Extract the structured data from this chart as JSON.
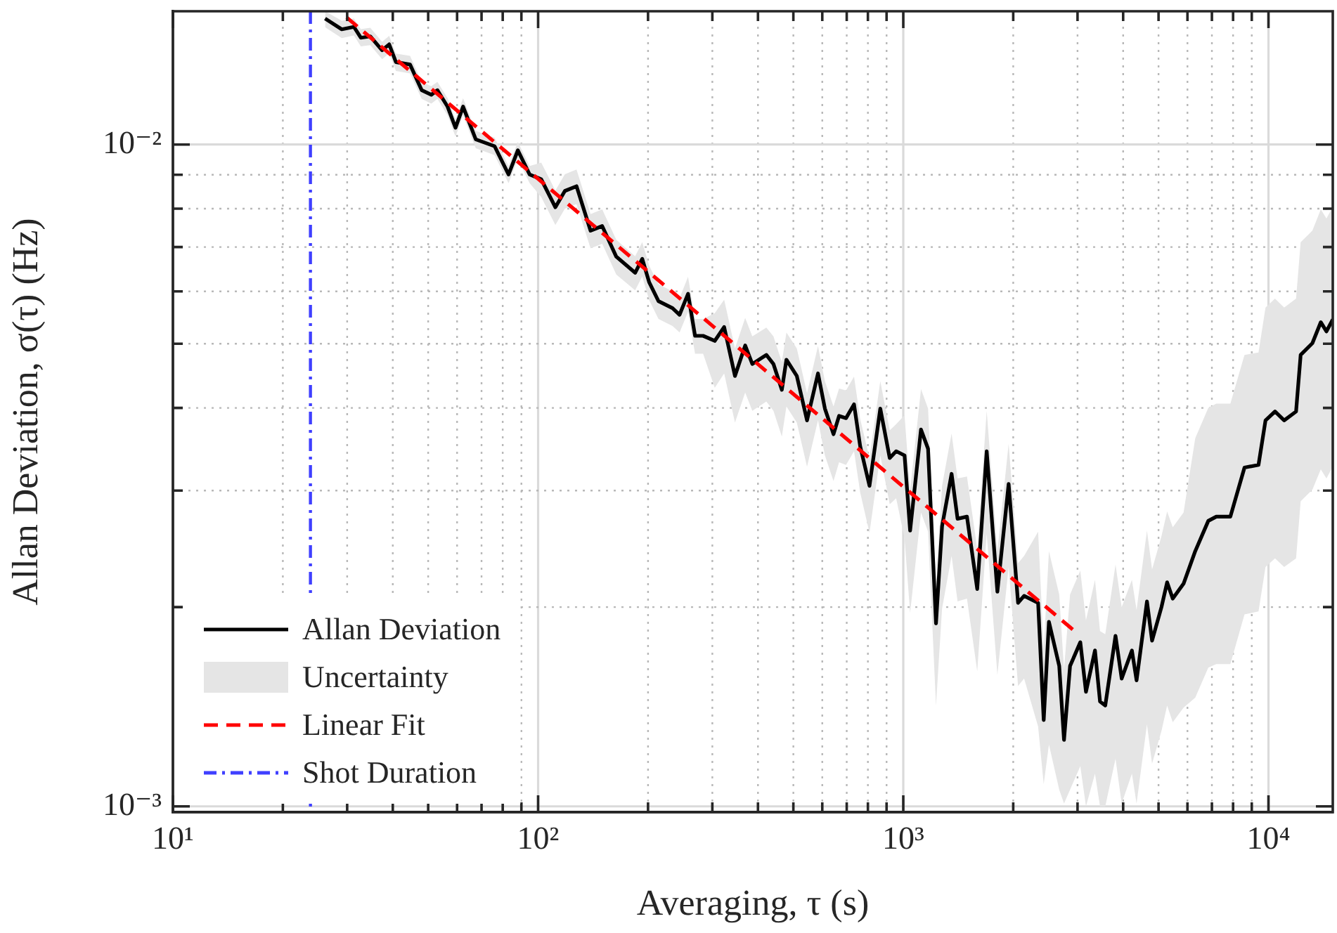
{
  "chart_data": {
    "type": "line",
    "xlabel": "Averaging, τ (s)",
    "ylabel": "Allan Deviation, σ(τ) (Hz)",
    "log": "xy",
    "grid": true,
    "legend": "bottom left",
    "marker": "none",
    "annotations": [
      "Uncertainty"
    ],
    "xlim": [
      10,
      15000
    ],
    "ylim": [
      0.00098,
      0.0159
    ],
    "xticks": [
      {
        "value": 10,
        "label": "10¹"
      },
      {
        "value": 20,
        "label": null
      },
      {
        "value": 30,
        "label": null
      },
      {
        "value": 40,
        "label": null
      },
      {
        "value": 50,
        "label": null
      },
      {
        "value": 60,
        "label": null
      },
      {
        "value": 70,
        "label": null
      },
      {
        "value": 80,
        "label": null
      },
      {
        "value": 90,
        "label": null
      },
      {
        "value": 100,
        "label": "10²"
      },
      {
        "value": 200,
        "label": null
      },
      {
        "value": 300,
        "label": null
      },
      {
        "value": 400,
        "label": null
      },
      {
        "value": 500,
        "label": null
      },
      {
        "value": 600,
        "label": null
      },
      {
        "value": 700,
        "label": null
      },
      {
        "value": 800,
        "label": null
      },
      {
        "value": 900,
        "label": null
      },
      {
        "value": 1000,
        "label": "10³"
      },
      {
        "value": 2000,
        "label": null
      },
      {
        "value": 3000,
        "label": null
      },
      {
        "value": 4000,
        "label": null
      },
      {
        "value": 5000,
        "label": null
      },
      {
        "value": 6000,
        "label": null
      },
      {
        "value": 7000,
        "label": null
      },
      {
        "value": 8000,
        "label": null
      },
      {
        "value": 9000,
        "label": null
      },
      {
        "value": 10000,
        "label": "10⁴"
      }
    ],
    "yticks": [
      {
        "value": 0.001,
        "label": "10⁻³"
      },
      {
        "value": 0.002,
        "label": null
      },
      {
        "value": 0.003,
        "label": null
      },
      {
        "value": 0.004,
        "label": null
      },
      {
        "value": 0.005,
        "label": null
      },
      {
        "value": 0.006,
        "label": null
      },
      {
        "value": 0.007,
        "label": null
      },
      {
        "value": 0.008,
        "label": null
      },
      {
        "value": 0.009,
        "label": null
      },
      {
        "value": 0.01,
        "label": "10⁻²"
      }
    ],
    "x": [
      26.1,
      29.0,
      31.3,
      32.7,
      34.7,
      37.4,
      39.1,
      40.8,
      44.6,
      48.0,
      51.0,
      53.0,
      56.5,
      59.4,
      62.3,
      67.5,
      76.0,
      83.0,
      88.0,
      94.8,
      102,
      111.5,
      118.4,
      127.4,
      139.2,
      149.8,
      163.7,
      184.4,
      192.8,
      201.5,
      213.6,
      233.4,
      244,
      257.4,
      269,
      283,
      304.6,
      323.2,
      346,
      369,
      386,
      421.7,
      441,
      465,
      478.6,
      511,
      545,
      584,
      610,
      644,
      667,
      697,
      733,
      762,
      808,
      865,
      918,
      956,
      1008,
      1044,
      1118,
      1169,
      1229,
      1277,
      1356,
      1408,
      1494,
      1594,
      1692,
      1810,
      1943,
      2062,
      2142,
      2340,
      2424,
      2505,
      2673,
      2755,
      2862,
      3053,
      3164,
      3349,
      3457,
      3573,
      3812,
      3963,
      4227,
      4353,
      4648,
      4800,
      5093,
      5278,
      5469,
      5854,
      6302,
      6843,
      7196,
      7864,
      8597,
      9391,
      9815,
      10420,
      11040,
      11900,
      12250,
      13190,
      13910,
      14410,
      15000
    ],
    "series": [
      {
        "name": "Allan Deviation",
        "color": "#000000",
        "line_style": "solid",
        "values": [
          0.0155,
          0.01493,
          0.01506,
          0.0145,
          0.01457,
          0.01388,
          0.01417,
          0.01332,
          0.01321,
          0.01208,
          0.01189,
          0.01208,
          0.01141,
          0.0106,
          0.01141,
          0.01018,
          0.00994,
          0.00901,
          0.0098,
          0.00901,
          0.00886,
          0.00804,
          0.00851,
          0.00865,
          0.00741,
          0.00753,
          0.00677,
          0.0064,
          0.00672,
          0.00619,
          0.0058,
          0.00566,
          0.00553,
          0.00595,
          0.00514,
          0.00514,
          0.00505,
          0.0053,
          0.00447,
          0.00497,
          0.00466,
          0.00481,
          0.00466,
          0.00426,
          0.00473,
          0.00447,
          0.00383,
          0.00451,
          0.00399,
          0.00365,
          0.00389,
          0.00386,
          0.00405,
          0.0035,
          0.00305,
          0.00399,
          0.00336,
          0.00344,
          0.00339,
          0.00261,
          0.00371,
          0.00347,
          0.00189,
          0.00265,
          0.00318,
          0.00272,
          0.00274,
          0.00213,
          0.00344,
          0.00211,
          0.00307,
          0.00203,
          0.00208,
          0.00203,
          0.00135,
          0.0019,
          0.00163,
          0.00126,
          0.00163,
          0.00177,
          0.00149,
          0.00172,
          0.00144,
          0.00142,
          0.00181,
          0.00156,
          0.00172,
          0.00155,
          0.00204,
          0.00178,
          0.002,
          0.00218,
          0.00206,
          0.00217,
          0.00243,
          0.0027,
          0.00274,
          0.00274,
          0.00325,
          0.00328,
          0.00383,
          0.00395,
          0.00383,
          0.00395,
          0.00481,
          0.00501,
          0.00539,
          0.00522,
          0.00544
        ],
        "upper": [
          0.0159,
          0.01538,
          0.01551,
          0.01494,
          0.01501,
          0.0143,
          0.0146,
          0.01372,
          0.01361,
          0.01244,
          0.01225,
          0.01244,
          0.01175,
          0.01092,
          0.01175,
          0.01049,
          0.01024,
          0.00928,
          0.01009,
          0.00928,
          0.00939,
          0.00852,
          0.00902,
          0.00917,
          0.00785,
          0.00798,
          0.00718,
          0.00678,
          0.00712,
          0.00656,
          0.00615,
          0.006,
          0.00586,
          0.00631,
          0.00545,
          0.00545,
          0.00556,
          0.00583,
          0.00492,
          0.00547,
          0.00513,
          0.00529,
          0.00513,
          0.00469,
          0.0052,
          0.00492,
          0.00421,
          0.00496,
          0.00439,
          0.00402,
          0.00428,
          0.00425,
          0.00446,
          0.00385,
          0.00336,
          0.00439,
          0.0037,
          0.00378,
          0.0039,
          0.003,
          0.00427,
          0.00399,
          0.00217,
          0.00305,
          0.00366,
          0.00313,
          0.00315,
          0.00245,
          0.00396,
          0.00243,
          0.00353,
          0.00233,
          0.00239,
          0.0026,
          0.00173,
          0.00243,
          0.00209,
          0.00161,
          0.00209,
          0.00227,
          0.00191,
          0.0022,
          0.00184,
          0.00182,
          0.00232,
          0.002,
          0.0022,
          0.00198,
          0.00261,
          0.00228,
          0.00256,
          0.00279,
          0.00264,
          0.00278,
          0.0036,
          0.004,
          0.00406,
          0.00406,
          0.00481,
          0.00485,
          0.00567,
          0.00585,
          0.00567,
          0.00585,
          0.00712,
          0.00741,
          0.00798,
          0.00773,
          0.00805
        ],
        "lower": [
          0.01504,
          0.01448,
          0.01461,
          0.01407,
          0.01413,
          0.01346,
          0.01374,
          0.01292,
          0.01281,
          0.01172,
          0.01153,
          0.01172,
          0.01107,
          0.01028,
          0.01107,
          0.00987,
          0.00964,
          0.00874,
          0.00951,
          0.00874,
          0.00833,
          0.00756,
          0.008,
          0.00813,
          0.00697,
          0.00708,
          0.00636,
          0.00602,
          0.00632,
          0.00582,
          0.00545,
          0.00532,
          0.0052,
          0.00559,
          0.00483,
          0.00483,
          0.00429,
          0.00451,
          0.0038,
          0.00422,
          0.00396,
          0.00409,
          0.00396,
          0.00362,
          0.00402,
          0.0038,
          0.00326,
          0.00383,
          0.00339,
          0.0031,
          0.00331,
          0.00328,
          0.00344,
          0.00298,
          0.00259,
          0.00339,
          0.00286,
          0.00292,
          0.00254,
          0.00196,
          0.00278,
          0.0026,
          0.00142,
          0.00199,
          0.00239,
          0.00204,
          0.00206,
          0.0016,
          0.00258,
          0.00158,
          0.0023,
          0.00152,
          0.00156,
          0.00132,
          0.00108,
          0.00124,
          0.00106,
          0.00101,
          0.00106,
          0.00115,
          0.001,
          0.00112,
          0.001,
          0.001,
          0.00118,
          0.00101,
          0.00112,
          0.00101,
          0.00133,
          0.00116,
          0.0013,
          0.00142,
          0.00134,
          0.00141,
          0.00146,
          0.00162,
          0.00164,
          0.00164,
          0.00195,
          0.00197,
          0.0023,
          0.00237,
          0.0023,
          0.00237,
          0.00289,
          0.00301,
          0.00323,
          0.00313,
          0.00326
        ]
      },
      {
        "name": "Linear Fit",
        "color": "#ff0000",
        "line_style": "dashed",
        "x": [
          29.9,
          2911
        ],
        "values": [
          0.01556,
          0.00185
        ]
      }
    ],
    "ref_lines": [
      {
        "axis": "x",
        "value": 23.8,
        "label": "Shot Duration",
        "color": "#4040ff",
        "line_style": "dashdot"
      }
    ]
  }
}
